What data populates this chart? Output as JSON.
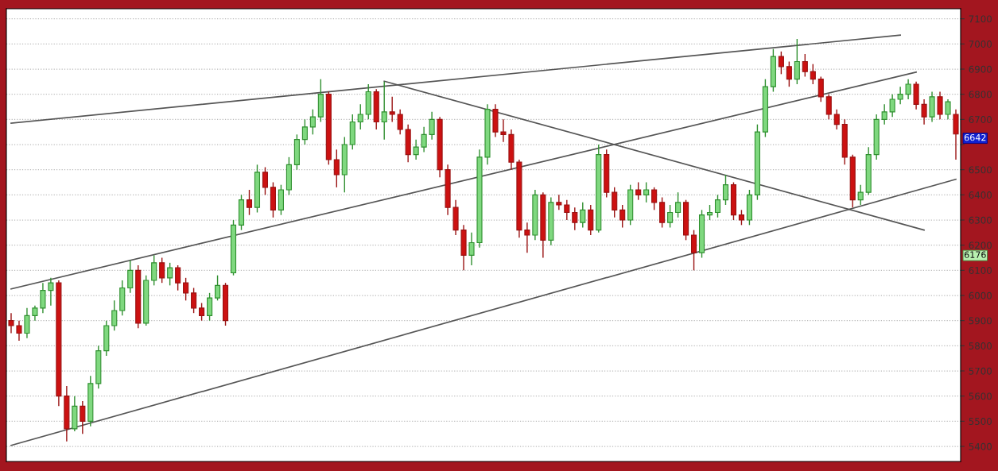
{
  "chart_data": {
    "type": "candlestick",
    "categories": [
      null,
      null,
      null,
      null,
      null,
      null,
      null,
      null,
      null,
      null,
      null,
      null,
      null,
      null,
      null,
      null,
      null,
      null,
      null,
      null,
      null,
      null,
      null,
      null,
      null,
      null,
      null,
      null,
      null,
      null,
      null,
      null,
      null,
      null,
      null,
      null,
      null,
      null,
      null,
      null,
      null,
      null,
      null,
      null,
      null,
      null,
      null,
      null,
      null,
      null,
      null,
      null,
      null,
      null,
      null,
      null,
      null,
      null,
      null,
      null,
      null,
      null,
      null,
      null,
      null,
      null,
      null,
      null,
      null,
      null,
      null,
      null,
      null,
      null,
      null,
      null,
      null,
      null,
      null,
      null,
      null,
      null,
      null,
      null,
      null,
      null,
      null,
      null,
      null,
      null,
      null,
      null,
      null,
      null,
      null,
      null,
      null,
      null,
      null,
      null,
      null,
      null,
      null,
      null,
      null,
      null,
      null,
      null,
      null,
      null,
      null,
      null,
      null,
      null,
      null,
      null,
      null,
      null,
      null,
      null
    ],
    "ohlc": [
      [
        5900,
        5930,
        5850,
        5880
      ],
      [
        5880,
        5900,
        5820,
        5850
      ],
      [
        5850,
        5950,
        5830,
        5920
      ],
      [
        5920,
        5960,
        5900,
        5950
      ],
      [
        5950,
        6050,
        5930,
        6020
      ],
      [
        6020,
        6070,
        5960,
        6050
      ],
      [
        6050,
        6060,
        5560,
        5600
      ],
      [
        5600,
        5640,
        5420,
        5470
      ],
      [
        5470,
        5600,
        5460,
        5560
      ],
      [
        5560,
        5580,
        5450,
        5500
      ],
      [
        5500,
        5680,
        5480,
        5650
      ],
      [
        5650,
        5800,
        5630,
        5780
      ],
      [
        5780,
        5900,
        5760,
        5880
      ],
      [
        5880,
        5980,
        5860,
        5940
      ],
      [
        5940,
        6060,
        5920,
        6030
      ],
      [
        6030,
        6140,
        6010,
        6100
      ],
      [
        6100,
        6120,
        5870,
        5890
      ],
      [
        5890,
        6080,
        5880,
        6060
      ],
      [
        6060,
        6160,
        6040,
        6130
      ],
      [
        6130,
        6150,
        6050,
        6070
      ],
      [
        6070,
        6130,
        6040,
        6110
      ],
      [
        6110,
        6120,
        6020,
        6050
      ],
      [
        6050,
        6070,
        5980,
        6010
      ],
      [
        6010,
        6030,
        5930,
        5950
      ],
      [
        5950,
        5970,
        5900,
        5920
      ],
      [
        5920,
        6010,
        5900,
        5990
      ],
      [
        5990,
        6080,
        5980,
        6040
      ],
      [
        6040,
        6050,
        5880,
        5900
      ],
      [
        6090,
        6300,
        6080,
        6280
      ],
      [
        6280,
        6400,
        6260,
        6380
      ],
      [
        6380,
        6420,
        6320,
        6350
      ],
      [
        6350,
        6520,
        6330,
        6490
      ],
      [
        6490,
        6510,
        6400,
        6430
      ],
      [
        6430,
        6450,
        6310,
        6340
      ],
      [
        6340,
        6440,
        6320,
        6420
      ],
      [
        6420,
        6550,
        6400,
        6520
      ],
      [
        6520,
        6640,
        6500,
        6620
      ],
      [
        6620,
        6700,
        6600,
        6670
      ],
      [
        6670,
        6740,
        6640,
        6710
      ],
      [
        6710,
        6860,
        6690,
        6800
      ],
      [
        6800,
        6810,
        6520,
        6540
      ],
      [
        6540,
        6580,
        6430,
        6480
      ],
      [
        6480,
        6630,
        6410,
        6600
      ],
      [
        6600,
        6720,
        6580,
        6690
      ],
      [
        6690,
        6760,
        6660,
        6720
      ],
      [
        6720,
        6840,
        6700,
        6810
      ],
      [
        6810,
        6820,
        6660,
        6690
      ],
      [
        6690,
        6850,
        6620,
        6730
      ],
      [
        6730,
        6790,
        6690,
        6720
      ],
      [
        6720,
        6740,
        6640,
        6660
      ],
      [
        6660,
        6680,
        6530,
        6560
      ],
      [
        6560,
        6620,
        6540,
        6590
      ],
      [
        6590,
        6670,
        6570,
        6640
      ],
      [
        6640,
        6730,
        6620,
        6700
      ],
      [
        6700,
        6710,
        6470,
        6500
      ],
      [
        6500,
        6520,
        6320,
        6350
      ],
      [
        6350,
        6380,
        6240,
        6260
      ],
      [
        6260,
        6280,
        6100,
        6160
      ],
      [
        6160,
        6250,
        6120,
        6210
      ],
      [
        6210,
        6580,
        6190,
        6550
      ],
      [
        6550,
        6760,
        6520,
        6740
      ],
      [
        6740,
        6760,
        6630,
        6650
      ],
      [
        6650,
        6700,
        6610,
        6640
      ],
      [
        6640,
        6660,
        6500,
        6530
      ],
      [
        6530,
        6540,
        6230,
        6260
      ],
      [
        6260,
        6290,
        6170,
        6240
      ],
      [
        6240,
        6420,
        6220,
        6400
      ],
      [
        6400,
        6410,
        6150,
        6220
      ],
      [
        6220,
        6390,
        6200,
        6370
      ],
      [
        6370,
        6400,
        6340,
        6360
      ],
      [
        6360,
        6380,
        6300,
        6330
      ],
      [
        6330,
        6350,
        6260,
        6290
      ],
      [
        6290,
        6370,
        6270,
        6340
      ],
      [
        6340,
        6360,
        6240,
        6260
      ],
      [
        6260,
        6600,
        6250,
        6560
      ],
      [
        6560,
        6580,
        6390,
        6410
      ],
      [
        6410,
        6430,
        6310,
        6340
      ],
      [
        6340,
        6360,
        6270,
        6300
      ],
      [
        6300,
        6440,
        6280,
        6420
      ],
      [
        6420,
        6450,
        6380,
        6400
      ],
      [
        6400,
        6450,
        6370,
        6420
      ],
      [
        6420,
        6430,
        6340,
        6370
      ],
      [
        6370,
        6390,
        6270,
        6290
      ],
      [
        6290,
        6360,
        6270,
        6330
      ],
      [
        6330,
        6410,
        6310,
        6370
      ],
      [
        6370,
        6380,
        6220,
        6240
      ],
      [
        6240,
        6260,
        6100,
        6170
      ],
      [
        6170,
        6340,
        6150,
        6320
      ],
      [
        6320,
        6360,
        6300,
        6330
      ],
      [
        6330,
        6400,
        6310,
        6380
      ],
      [
        6380,
        6480,
        6360,
        6440
      ],
      [
        6440,
        6450,
        6300,
        6320
      ],
      [
        6320,
        6340,
        6280,
        6300
      ],
      [
        6300,
        6420,
        6280,
        6400
      ],
      [
        6400,
        6680,
        6380,
        6650
      ],
      [
        6650,
        6860,
        6630,
        6830
      ],
      [
        6830,
        6980,
        6810,
        6950
      ],
      [
        6950,
        6970,
        6880,
        6910
      ],
      [
        6910,
        6930,
        6830,
        6860
      ],
      [
        6860,
        7020,
        6840,
        6930
      ],
      [
        6930,
        6960,
        6870,
        6890
      ],
      [
        6890,
        6920,
        6840,
        6860
      ],
      [
        6860,
        6870,
        6770,
        6790
      ],
      [
        6790,
        6800,
        6700,
        6720
      ],
      [
        6720,
        6740,
        6660,
        6680
      ],
      [
        6680,
        6700,
        6520,
        6550
      ],
      [
        6550,
        6560,
        6350,
        6380
      ],
      [
        6380,
        6440,
        6360,
        6410
      ],
      [
        6410,
        6590,
        6400,
        6560
      ],
      [
        6560,
        6720,
        6540,
        6700
      ],
      [
        6700,
        6760,
        6680,
        6730
      ],
      [
        6730,
        6800,
        6710,
        6780
      ],
      [
        6780,
        6830,
        6760,
        6800
      ],
      [
        6800,
        6860,
        6780,
        6840
      ],
      [
        6840,
        6850,
        6740,
        6760
      ],
      [
        6760,
        6780,
        6680,
        6710
      ],
      [
        6710,
        6810,
        6690,
        6790
      ],
      [
        6790,
        6810,
        6700,
        6720
      ],
      [
        6720,
        6780,
        6700,
        6770
      ],
      [
        6720,
        6740,
        6540,
        6642
      ]
    ],
    "series": [
      {
        "type": "line",
        "color": "#555555",
        "values": [
          6685,
          null,
          null,
          null,
          null,
          null,
          null,
          null,
          null,
          null,
          null,
          null,
          null,
          null,
          null,
          null,
          null,
          null,
          null,
          null,
          null,
          null,
          null,
          null,
          null,
          null,
          null,
          null,
          null,
          null,
          null,
          null,
          null,
          null,
          null,
          null,
          null,
          null,
          null,
          null,
          null,
          null,
          null,
          null,
          null,
          null,
          null,
          null,
          null,
          null,
          null,
          null,
          null,
          null,
          null,
          null,
          null,
          null,
          null,
          null,
          null,
          null,
          null,
          null,
          null,
          null,
          null,
          null,
          null,
          null,
          null,
          null,
          null,
          null,
          null,
          null,
          null,
          null,
          null,
          null,
          null,
          null,
          null,
          null,
          null,
          null,
          null,
          null,
          null,
          null,
          null,
          null,
          null,
          null,
          null,
          null,
          null,
          null,
          null,
          null,
          null,
          null,
          null,
          null,
          null,
          null,
          null,
          null,
          null,
          null,
          null,
          null,
          7035,
          null,
          null,
          null,
          null,
          null,
          null,
          null
        ]
      },
      {
        "type": "line",
        "color": "#555555",
        "values": [
          6026,
          null,
          null,
          null,
          null,
          null,
          null,
          null,
          null,
          null,
          null,
          null,
          null,
          null,
          null,
          null,
          null,
          null,
          null,
          null,
          null,
          null,
          null,
          null,
          null,
          null,
          null,
          null,
          null,
          null,
          null,
          null,
          null,
          null,
          null,
          null,
          null,
          null,
          null,
          null,
          null,
          null,
          null,
          null,
          null,
          null,
          null,
          null,
          null,
          null,
          null,
          null,
          null,
          null,
          null,
          null,
          null,
          null,
          null,
          null,
          null,
          null,
          null,
          null,
          null,
          null,
          null,
          null,
          null,
          null,
          null,
          null,
          null,
          null,
          null,
          null,
          null,
          null,
          null,
          null,
          null,
          null,
          null,
          null,
          null,
          null,
          null,
          null,
          null,
          null,
          null,
          null,
          null,
          null,
          null,
          null,
          null,
          null,
          null,
          null,
          null,
          null,
          null,
          null,
          null,
          null,
          null,
          null,
          null,
          null,
          null,
          null,
          null,
          null,
          6888,
          null,
          null,
          null,
          null,
          null
        ]
      },
      {
        "type": "line",
        "color": "#555555",
        "values": [
          5404,
          null,
          null,
          null,
          null,
          null,
          null,
          null,
          null,
          null,
          null,
          null,
          null,
          null,
          null,
          null,
          null,
          null,
          null,
          null,
          null,
          null,
          null,
          null,
          null,
          null,
          null,
          null,
          null,
          null,
          null,
          null,
          null,
          null,
          null,
          null,
          null,
          null,
          null,
          null,
          null,
          null,
          null,
          null,
          null,
          null,
          null,
          null,
          null,
          null,
          null,
          null,
          null,
          null,
          null,
          null,
          null,
          null,
          null,
          null,
          null,
          null,
          null,
          null,
          null,
          null,
          null,
          null,
          null,
          null,
          null,
          null,
          null,
          null,
          null,
          null,
          null,
          null,
          null,
          null,
          null,
          null,
          null,
          null,
          null,
          null,
          null,
          null,
          null,
          null,
          null,
          null,
          null,
          null,
          null,
          null,
          null,
          null,
          null,
          null,
          null,
          null,
          null,
          null,
          null,
          null,
          null,
          null,
          null,
          null,
          null,
          null,
          null,
          null,
          null,
          null,
          null,
          null,
          null,
          6462
        ]
      },
      {
        "type": "line",
        "color": "#555555",
        "values": [
          null,
          null,
          null,
          null,
          null,
          null,
          null,
          null,
          null,
          null,
          null,
          null,
          null,
          null,
          null,
          null,
          null,
          null,
          null,
          null,
          null,
          null,
          null,
          null,
          null,
          null,
          null,
          null,
          null,
          null,
          null,
          null,
          null,
          null,
          null,
          null,
          null,
          null,
          null,
          null,
          null,
          null,
          null,
          null,
          null,
          null,
          null,
          6852,
          null,
          null,
          null,
          null,
          null,
          null,
          null,
          null,
          null,
          null,
          null,
          null,
          null,
          null,
          null,
          null,
          null,
          null,
          null,
          null,
          null,
          null,
          null,
          null,
          null,
          null,
          null,
          null,
          null,
          null,
          null,
          null,
          null,
          null,
          null,
          null,
          null,
          null,
          null,
          null,
          null,
          null,
          null,
          null,
          null,
          null,
          null,
          null,
          null,
          null,
          null,
          null,
          null,
          null,
          null,
          null,
          null,
          null,
          null,
          null,
          null,
          null,
          null,
          null,
          null,
          null,
          null,
          6260,
          null,
          null,
          null,
          null
        ]
      }
    ],
    "ylim": [
      5340,
      7140
    ],
    "yticks": [
      5400,
      5500,
      5600,
      5700,
      5800,
      5900,
      6000,
      6100,
      6200,
      6300,
      6400,
      6500,
      {
        "value": 6600,
        "label": null
      },
      6700,
      6800,
      6900,
      7000,
      7100
    ],
    "grid": "y",
    "annotations": [
      "6642",
      "6176"
    ]
  }
}
